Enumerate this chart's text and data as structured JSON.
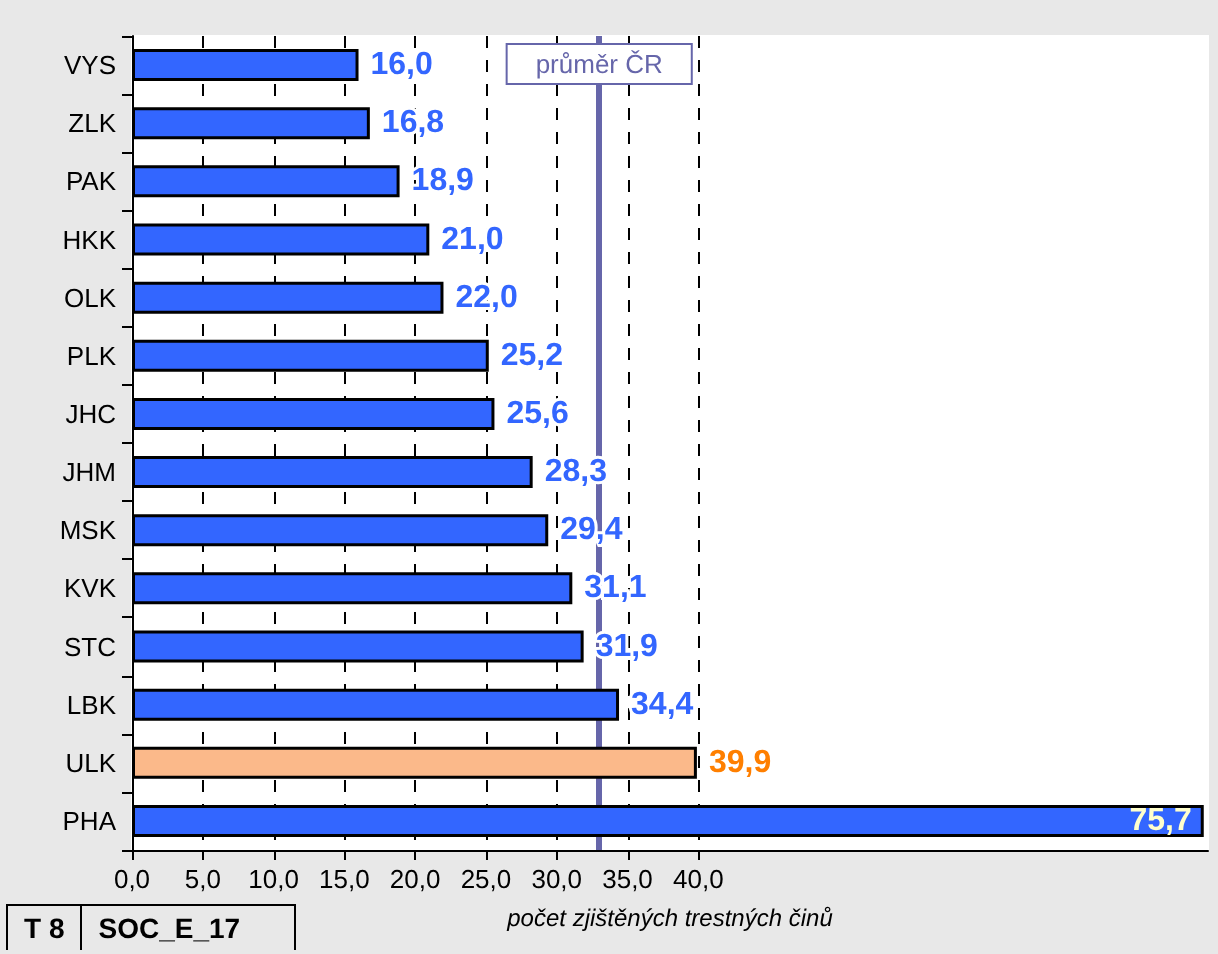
{
  "chart_data": {
    "type": "bar",
    "orientation": "horizontal",
    "xlabel": "počet zjištěných trestných činů",
    "categories": [
      "VYS",
      "ZLK",
      "PAK",
      "HKK",
      "OLK",
      "PLK",
      "JHC",
      "JHM",
      "MSK",
      "KVK",
      "STC",
      "LBK",
      "ULK",
      "PHA"
    ],
    "values": [
      16.0,
      16.8,
      18.9,
      21.0,
      22.0,
      25.2,
      25.6,
      28.3,
      29.4,
      31.1,
      31.9,
      34.4,
      39.9,
      75.7
    ],
    "colors": [
      "#3366ff",
      "#3366ff",
      "#3366ff",
      "#3366ff",
      "#3366ff",
      "#3366ff",
      "#3366ff",
      "#3366ff",
      "#3366ff",
      "#3366ff",
      "#3366ff",
      "#3366ff",
      "#fbb98a",
      "#3366ff"
    ],
    "xlim": [
      0,
      76
    ],
    "xticks": [
      {
        "value": 0,
        "label": "0,0"
      },
      {
        "value": 5,
        "label": "5,0"
      },
      {
        "value": 10,
        "label": "10,0"
      },
      {
        "value": 15,
        "label": "15,0"
      },
      {
        "value": 20,
        "label": "20,0"
      },
      {
        "value": 25,
        "label": "25,0"
      },
      {
        "value": 30,
        "label": "30,0"
      },
      {
        "value": 35,
        "label": "35,0"
      },
      {
        "value": 40,
        "label": "40,0"
      }
    ],
    "value_labels": [
      "16,0",
      "16,8",
      "18,9",
      "21,0",
      "22,0",
      "25,2",
      "25,6",
      "28,3",
      "29,4",
      "31,1",
      "31,9",
      "34,4",
      "39,9",
      "75,7"
    ],
    "ref_lines": [
      {
        "axis": "x",
        "value": 33.0,
        "label": "průměr ČR",
        "color": "#6666aa"
      }
    ],
    "grid": "x",
    "annotations": [
      "T 8",
      "SOC_E_17"
    ]
  }
}
